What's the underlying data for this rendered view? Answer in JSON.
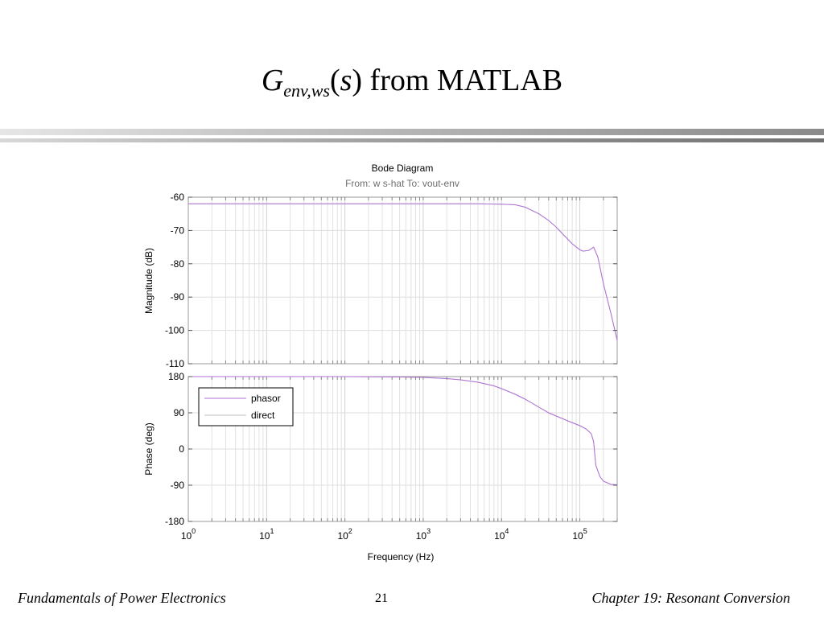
{
  "slide": {
    "title_main": "G",
    "title_sub": "env,ws",
    "title_paren_open": "(",
    "title_s": "s",
    "title_rest": ") from MATLAB"
  },
  "footer": {
    "left": "Fundamentals of Power Electronics",
    "page": "21",
    "right": "Chapter 19:  Resonant Conversion"
  },
  "chart_data": {
    "type": "line",
    "title": "Bode Diagram",
    "subtitle": "From: w s-hat  To: vout-env",
    "xlabel": "Frequency  (Hz)",
    "xscale": "log",
    "xlim": [
      1,
      300000
    ],
    "x_ticks": [
      {
        "base": "10",
        "exp": "0",
        "value": 1
      },
      {
        "base": "10",
        "exp": "1",
        "value": 10
      },
      {
        "base": "10",
        "exp": "2",
        "value": 100
      },
      {
        "base": "10",
        "exp": "3",
        "value": 1000
      },
      {
        "base": "10",
        "exp": "4",
        "value": 10000
      },
      {
        "base": "10",
        "exp": "5",
        "value": 100000
      }
    ],
    "grid": true,
    "legend_placement": "top-left",
    "panels": [
      {
        "name": "magnitude",
        "ylabel": "Magnitude (dB)",
        "ylim": [
          -110,
          -60
        ],
        "yticks": [
          "-60",
          "-70",
          "-80",
          "-90",
          "-100",
          "-110"
        ],
        "series": [
          {
            "name": "phasor",
            "color": "#b070d8",
            "x": [
              1,
              10,
              100,
              1000,
              5000,
              10000,
              15000,
              20000,
              30000,
              40000,
              50000,
              60000,
              80000,
              100000,
              110000,
              130000,
              150000,
              170000,
              200000,
              250000,
              300000
            ],
            "y": [
              -62,
              -62,
              -62,
              -62,
              -62,
              -62.1,
              -62.3,
              -63,
              -65,
              -67,
              -69,
              -71,
              -74,
              -75.8,
              -76.2,
              -76,
              -75,
              -78,
              -86,
              -95,
              -103
            ]
          },
          {
            "name": "direct",
            "color": "#c0c0c0",
            "x": [
              1,
              10,
              100,
              1000,
              5000,
              10000,
              15000,
              20000,
              30000,
              40000,
              50000,
              60000,
              80000,
              100000,
              110000,
              130000,
              150000,
              170000,
              200000,
              250000,
              300000
            ],
            "y": [
              -62,
              -62,
              -62,
              -62,
              -62,
              -62.1,
              -62.3,
              -63,
              -65,
              -67,
              -69,
              -71,
              -74,
              -75.8,
              -76.2,
              -76,
              -75,
              -78,
              -86,
              -95,
              -103
            ]
          }
        ]
      },
      {
        "name": "phase",
        "ylabel": "Phase (deg)",
        "ylim": [
          -180,
          180
        ],
        "yticks": [
          "180",
          "90",
          "0",
          "-90",
          "-180"
        ],
        "series": [
          {
            "name": "phasor",
            "color": "#b070d8",
            "x": [
              1,
              10,
              100,
              500,
              1000,
              2000,
              3000,
              5000,
              8000,
              10000,
              15000,
              20000,
              30000,
              40000,
              50000,
              70000,
              100000,
              120000,
              140000,
              150000,
              160000,
              180000,
              200000,
              250000,
              300000
            ],
            "y": [
              180,
              180,
              180,
              179,
              178,
              175,
              172,
              166,
              157,
              150,
              136,
              124,
              104,
              90,
              82,
              70,
              58,
              50,
              38,
              18,
              -40,
              -68,
              -80,
              -88,
              -89
            ]
          },
          {
            "name": "direct",
            "color": "#c0c0c0",
            "x": [
              1,
              10,
              100,
              500,
              1000,
              2000,
              3000,
              5000,
              8000,
              10000,
              15000,
              20000,
              30000,
              40000,
              50000,
              70000,
              100000,
              120000,
              140000,
              150000,
              160000,
              180000,
              200000,
              250000,
              300000
            ],
            "y": [
              180,
              180,
              180,
              179,
              178,
              175,
              172,
              166,
              157,
              150,
              136,
              124,
              104,
              90,
              82,
              70,
              58,
              50,
              38,
              18,
              -40,
              -68,
              -80,
              -88,
              -89
            ]
          }
        ]
      }
    ]
  }
}
